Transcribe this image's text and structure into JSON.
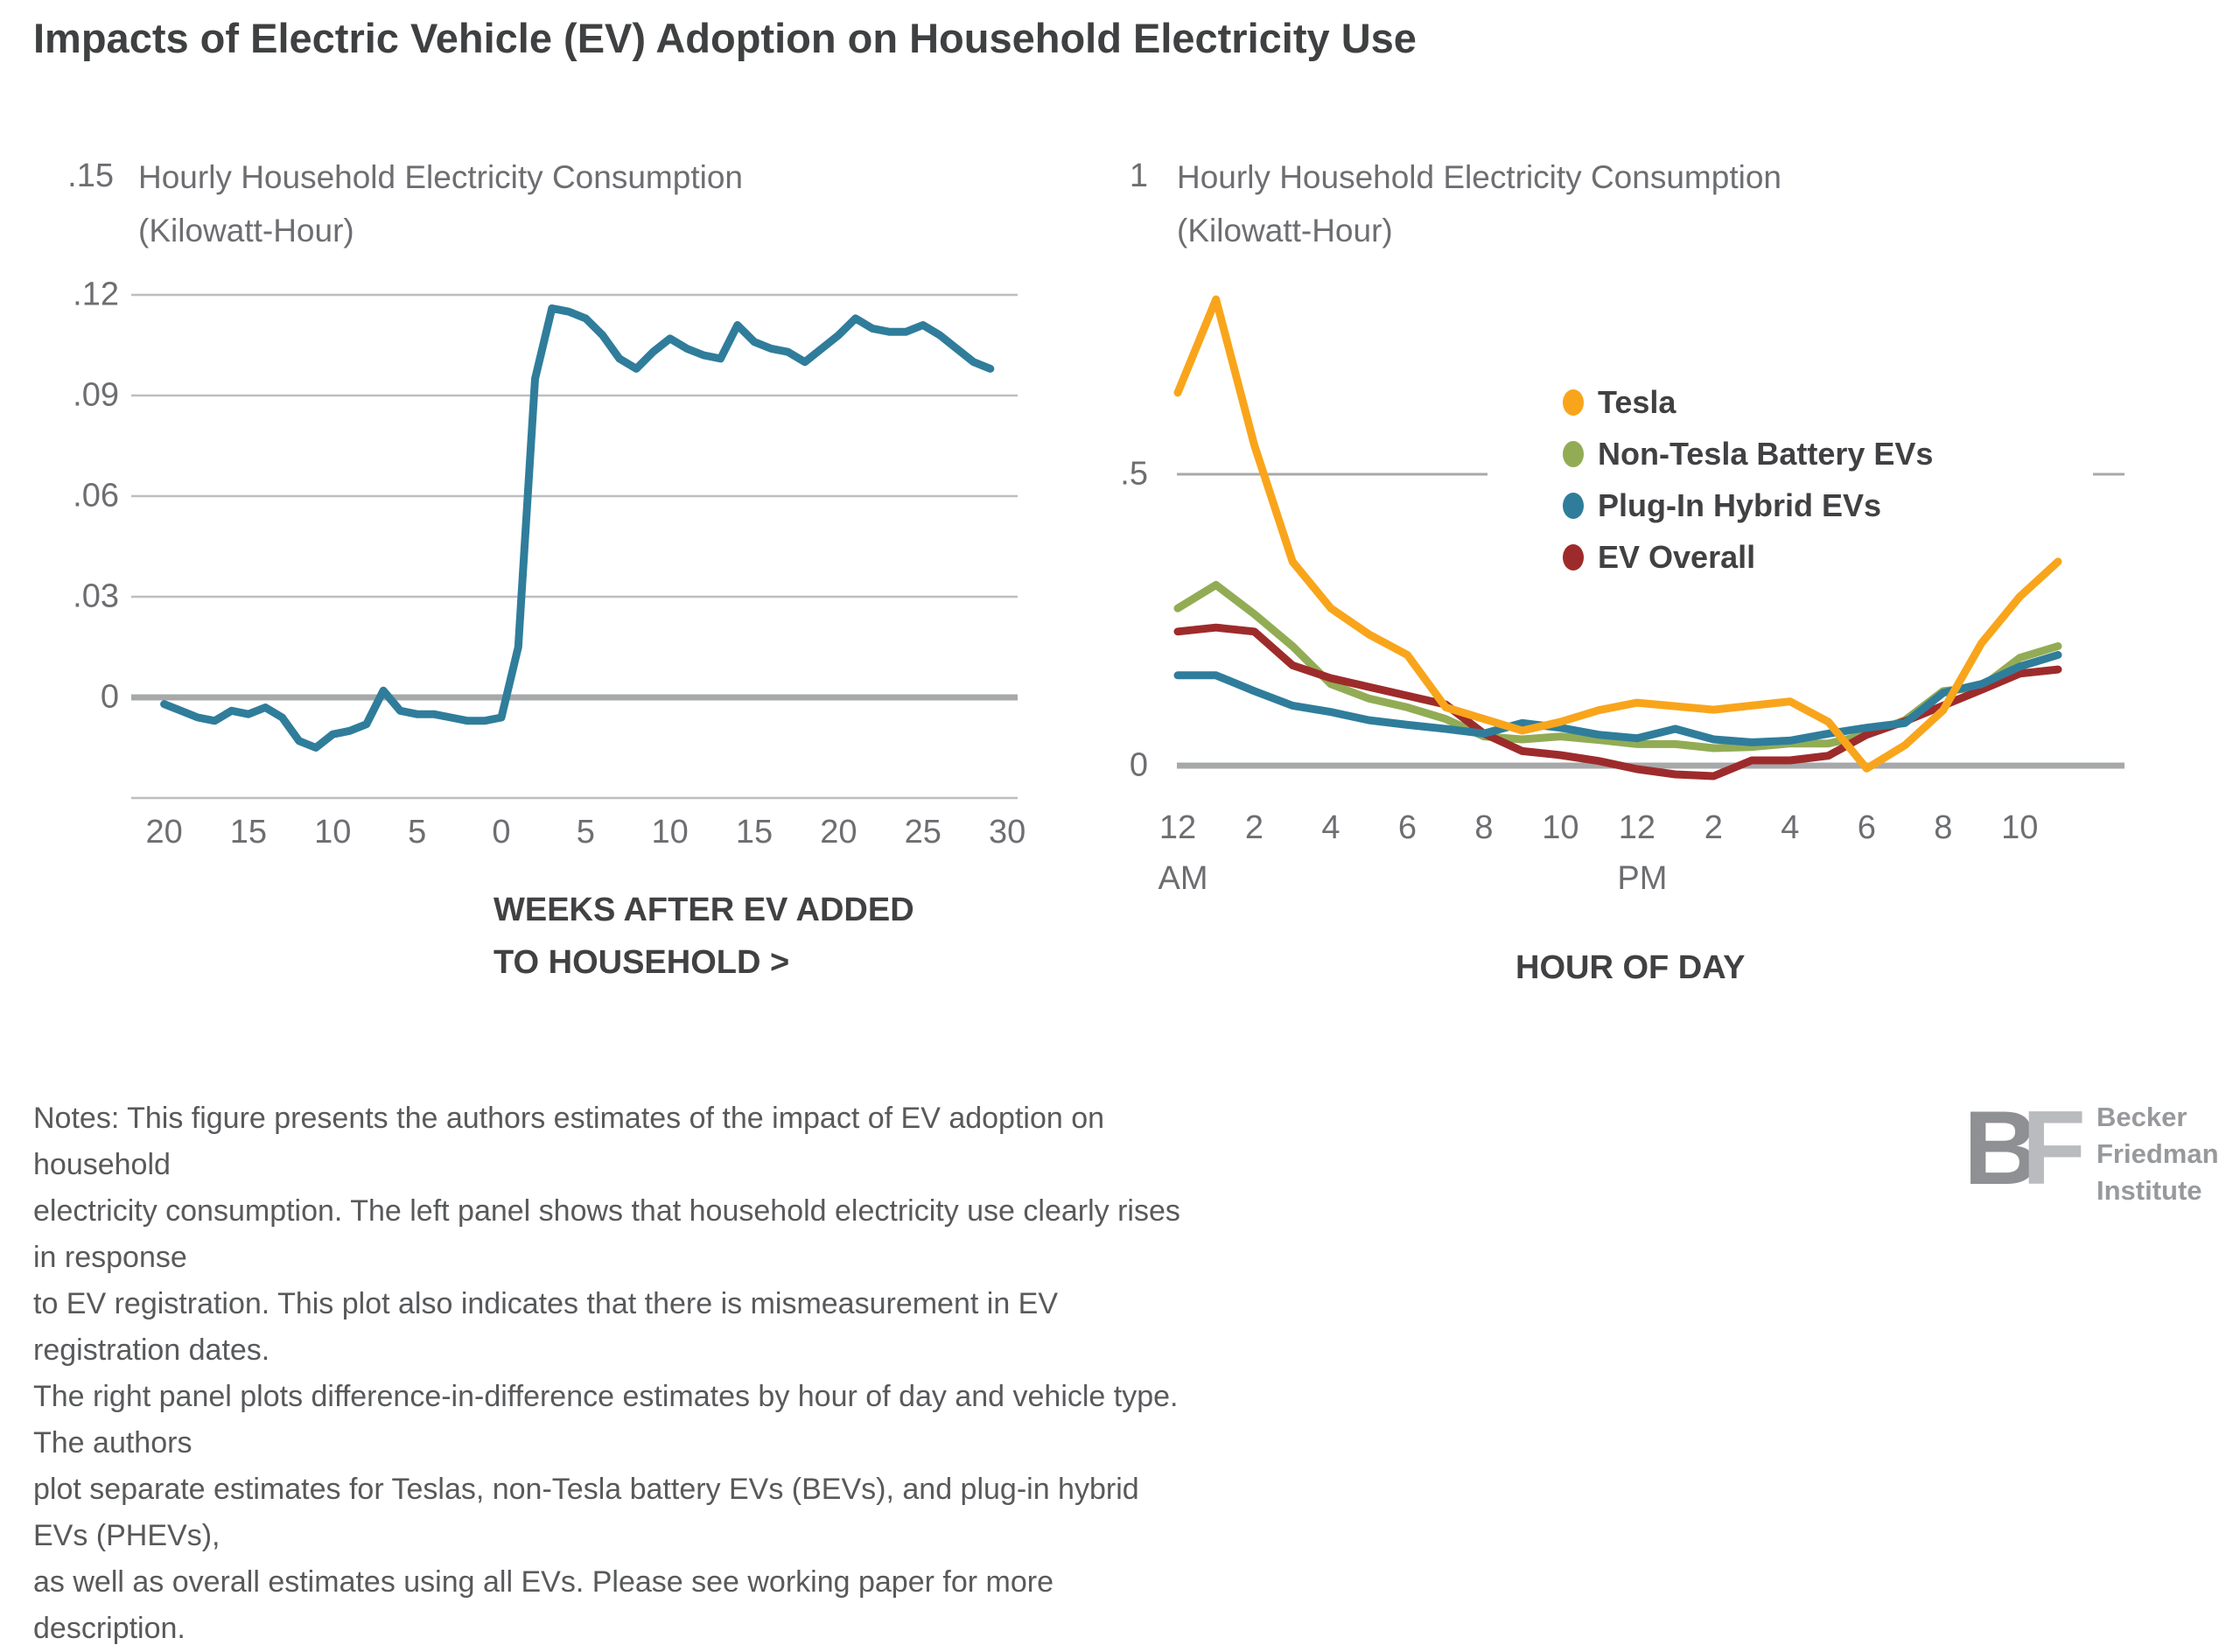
{
  "page": {
    "title": "Impacts of Electric Vehicle (EV) Adoption on Household Electricity Use"
  },
  "colors": {
    "tesla_orange": "#F9A51B",
    "non_tesla_green": "#92AC55",
    "phev_teal": "#2F7D9B",
    "ev_overall_red": "#9E2B2B",
    "gridline": "#BDBEC0",
    "zero_line": "#A7A8AA",
    "tick_text": "#6D6E71",
    "heading_text": "#414042"
  },
  "chart_data": [
    {
      "type": "line",
      "panel": "left",
      "title_line1": "Hourly Household Electricity Consumption",
      "title_line2": "(Kilowatt-Hour)",
      "top_tick": ".15",
      "xlabel_line1": "WEEKS AFTER EV ADDED",
      "xlabel_line2": "TO HOUSEHOLD >",
      "ylim": [
        -0.03,
        0.15
      ],
      "grid": true,
      "ytick_values": [
        0.12,
        0.09,
        0.06,
        0.03,
        0
      ],
      "ytick_labels": [
        ".12",
        ".09",
        ".06",
        ".03",
        "0"
      ],
      "xtick_values": [
        -20,
        -15,
        -10,
        -5,
        0,
        5,
        10,
        15,
        20,
        25,
        30
      ],
      "xtick_labels": [
        "20",
        "15",
        "10",
        "5",
        "0",
        "5",
        "10",
        "15",
        "20",
        "25",
        "30"
      ],
      "x": [
        -20,
        -19,
        -18,
        -17,
        -16,
        -15,
        -14,
        -13,
        -12,
        -11,
        -10,
        -9,
        -8,
        -7,
        -6,
        -5,
        -4,
        -3,
        -2,
        -1,
        0,
        1,
        2,
        3,
        4,
        5,
        6,
        7,
        8,
        9,
        10,
        11,
        12,
        13,
        14,
        15,
        16,
        17,
        18,
        19,
        20,
        21,
        22,
        23,
        24,
        25,
        26,
        27,
        28,
        29
      ],
      "series": [
        {
          "name": "Household electricity use response to EV registration",
          "color": "#2F7D9B",
          "values": [
            -0.002,
            -0.004,
            -0.006,
            -0.007,
            -0.004,
            -0.005,
            -0.003,
            -0.006,
            -0.013,
            -0.015,
            -0.011,
            -0.01,
            -0.008,
            0.002,
            -0.004,
            -0.005,
            -0.005,
            -0.006,
            -0.007,
            -0.007,
            -0.006,
            0.015,
            0.095,
            0.116,
            0.115,
            0.113,
            0.108,
            0.101,
            0.098,
            0.103,
            0.107,
            0.104,
            0.102,
            0.101,
            0.111,
            0.106,
            0.104,
            0.103,
            0.1,
            0.104,
            0.108,
            0.113,
            0.11,
            0.109,
            0.109,
            0.111,
            0.108,
            0.104,
            0.1,
            0.098
          ]
        }
      ]
    },
    {
      "type": "line",
      "panel": "right",
      "title_line1": "Hourly Household Electricity Consumption",
      "title_line2": "(Kilowatt-Hour)",
      "top_tick": "1",
      "xlabel": "HOUR OF DAY",
      "ylim": [
        -0.07,
        1
      ],
      "grid": true,
      "legend_position": "upper right",
      "ytick_values": [
        0.5,
        0
      ],
      "ytick_labels": [
        ".5",
        "0"
      ],
      "xtick_values": [
        0,
        2,
        4,
        6,
        8,
        10,
        12,
        14,
        16,
        18,
        20,
        22
      ],
      "xtick_labels": [
        "12",
        "2",
        "4",
        "6",
        "8",
        "10",
        "12",
        "2",
        "4",
        "6",
        "8",
        "10"
      ],
      "xtick_sublabels": [
        "AM",
        "",
        "",
        "",
        "",
        "",
        "PM",
        "",
        "",
        "",
        "",
        ""
      ],
      "x": [
        0,
        1,
        2,
        3,
        4,
        5,
        6,
        7,
        8,
        9,
        10,
        11,
        12,
        13,
        14,
        15,
        16,
        17,
        18,
        19,
        20,
        21,
        22,
        23
      ],
      "series": [
        {
          "name": "Tesla",
          "color": "#F9A51B",
          "values": [
            0.64,
            0.8,
            0.55,
            0.35,
            0.27,
            0.225,
            0.19,
            0.1,
            0.08,
            0.06,
            0.075,
            0.095,
            0.108,
            0.102,
            0.096,
            0.103,
            0.11,
            0.075,
            -0.005,
            0.035,
            0.095,
            0.21,
            0.29,
            0.35
          ]
        },
        {
          "name": "Non-Tesla Battery EVs",
          "color": "#92AC55",
          "values": [
            0.27,
            0.31,
            0.26,
            0.205,
            0.14,
            0.115,
            0.1,
            0.08,
            0.05,
            0.045,
            0.05,
            0.044,
            0.037,
            0.037,
            0.03,
            0.032,
            0.038,
            0.038,
            0.053,
            0.078,
            0.128,
            0.135,
            0.185,
            0.205
          ]
        },
        {
          "name": "Plug-In Hybrid EVs",
          "color": "#2F7D9B",
          "values": [
            0.155,
            0.155,
            0.128,
            0.103,
            0.092,
            0.078,
            0.07,
            0.063,
            0.055,
            0.073,
            0.065,
            0.053,
            0.047,
            0.063,
            0.045,
            0.04,
            0.043,
            0.055,
            0.065,
            0.073,
            0.125,
            0.14,
            0.17,
            0.19
          ]
        },
        {
          "name": "EV Overall",
          "color": "#9E2B2B",
          "values": [
            0.23,
            0.237,
            0.23,
            0.172,
            0.15,
            0.135,
            0.12,
            0.105,
            0.055,
            0.025,
            0.018,
            0.008,
            -0.006,
            -0.015,
            -0.018,
            0.009,
            0.009,
            0.017,
            0.053,
            0.076,
            0.103,
            0.13,
            0.158,
            0.165
          ]
        }
      ]
    }
  ],
  "notes": {
    "text": "Notes: This figure presents the authors estimates of the impact of EV adoption on household\nelectricity consumption. The left panel shows that household electricity use clearly rises in response\nto EV registration. This plot also indicates that there is mismeasurement in EV registration dates.\nThe right panel plots difference-in-difference estimates by hour of day and vehicle type. The authors\nplot separate estimates for Teslas, non-Tesla battery EVs (BEVs), and plug-in hybrid EVs (PHEVs),\nas well as overall estimates using all EVs. Please see working paper for more description."
  },
  "logo": {
    "mark_b": "B",
    "mark_f": "F",
    "line1": "Becker",
    "line2": "Friedman",
    "line3": "Institute"
  }
}
